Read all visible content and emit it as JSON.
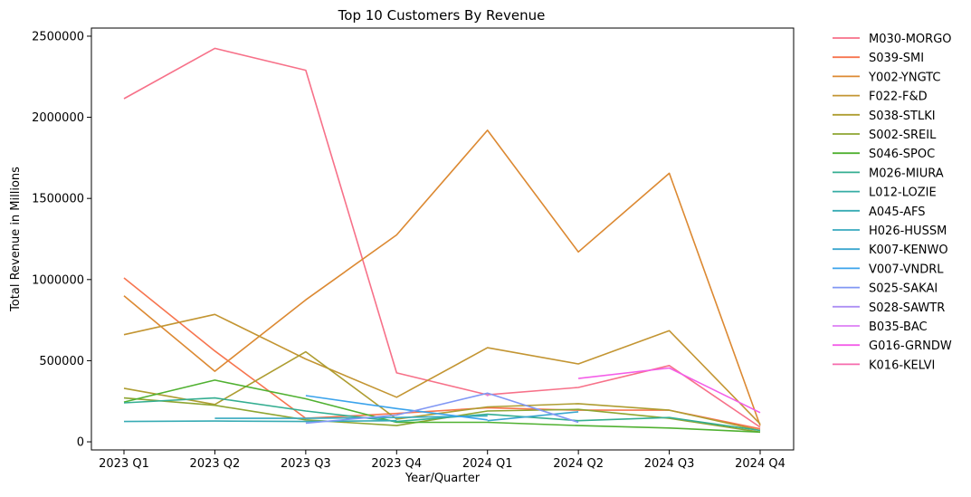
{
  "chart_data": {
    "type": "line",
    "title": "Top 10 Customers By Revenue",
    "xlabel": "Year/Quarter",
    "ylabel": "Total Revenue in Millions",
    "categories": [
      "2023 Q1",
      "2023 Q2",
      "2023 Q3",
      "2023 Q4",
      "2024 Q1",
      "2024 Q2",
      "2024 Q3",
      "2024 Q4"
    ],
    "ylim": [
      -50000,
      2550000
    ],
    "yticks": [
      0,
      500000,
      1000000,
      1500000,
      2000000,
      2500000
    ],
    "ytick_labels": [
      "0",
      "500000",
      "1000000",
      "1500000",
      "2000000",
      "2500000"
    ],
    "grid": false,
    "legend_position": "outside-right",
    "series": [
      {
        "name": "M030-MORGO",
        "color": "#f77189",
        "values": [
          2115000,
          2425000,
          2290000,
          425000,
          290000,
          335000,
          470000,
          90000
        ]
      },
      {
        "name": "S039-SMI",
        "color": "#f7754f",
        "values": [
          1010000,
          560000,
          145000,
          175000,
          210000,
          195000,
          195000,
          80000
        ]
      },
      {
        "name": "Y002-YNGTC",
        "color": "#dc8932",
        "values": [
          900000,
          435000,
          875000,
          1275000,
          1920000,
          1170000,
          1655000,
          100000
        ]
      },
      {
        "name": "F022-F&D",
        "color": "#c39532",
        "values": [
          660000,
          785000,
          510000,
          275000,
          580000,
          480000,
          685000,
          110000
        ]
      },
      {
        "name": "S038-STLKI",
        "color": "#ae9d31",
        "values": [
          330000,
          230000,
          555000,
          140000,
          215000,
          235000,
          195000,
          70000
        ]
      },
      {
        "name": "S002-SREIL",
        "color": "#8ea531",
        "values": [
          270000,
          225000,
          135000,
          100000,
          190000,
          200000,
          145000,
          60000
        ]
      },
      {
        "name": "S046-SPOC",
        "color": "#50b131",
        "values": [
          245000,
          380000,
          265000,
          120000,
          120000,
          100000,
          85000,
          60000
        ]
      },
      {
        "name": "M026-MIURA",
        "color": "#34ae91",
        "values": [
          240000,
          270000,
          190000,
          125000,
          170000,
          130000,
          150000,
          70000
        ]
      },
      {
        "name": "L012-LOZIE",
        "color": "#36ada4",
        "values": [
          null,
          null,
          null,
          null,
          null,
          null,
          null,
          null
        ]
      },
      {
        "name": "A045-AFS",
        "color": "#37abb4",
        "values": [
          125000,
          128000,
          125000,
          130000,
          null,
          null,
          null,
          null
        ]
      },
      {
        "name": "H026-HUSSM",
        "color": "#38aabf",
        "values": [
          null,
          145000,
          145000,
          150000,
          160000,
          null,
          null,
          null
        ]
      },
      {
        "name": "K007-KENWO",
        "color": "#3aa6ce",
        "values": [
          null,
          null,
          null,
          null,
          130000,
          185000,
          null,
          null
        ]
      },
      {
        "name": "V007-VNDRL",
        "color": "#3ba3ec",
        "values": [
          null,
          null,
          285000,
          205000,
          135000,
          null,
          null,
          null
        ]
      },
      {
        "name": "S025-SAKAI",
        "color": "#8197f4",
        "values": [
          null,
          null,
          115000,
          165000,
          300000,
          120000,
          null,
          null
        ]
      },
      {
        "name": "S028-SAWTR",
        "color": "#ad8ff4",
        "values": [
          null,
          null,
          null,
          null,
          null,
          null,
          null,
          null
        ]
      },
      {
        "name": "B035-BAC",
        "color": "#dd7ef4",
        "values": [
          null,
          null,
          null,
          null,
          285000,
          null,
          null,
          null
        ]
      },
      {
        "name": "G016-GRNDW",
        "color": "#f45ee8",
        "values": [
          null,
          null,
          null,
          null,
          null,
          390000,
          455000,
          180000
        ]
      },
      {
        "name": "K016-KELVI",
        "color": "#f66bad",
        "values": [
          null,
          null,
          null,
          null,
          null,
          null,
          null,
          null
        ]
      }
    ]
  }
}
